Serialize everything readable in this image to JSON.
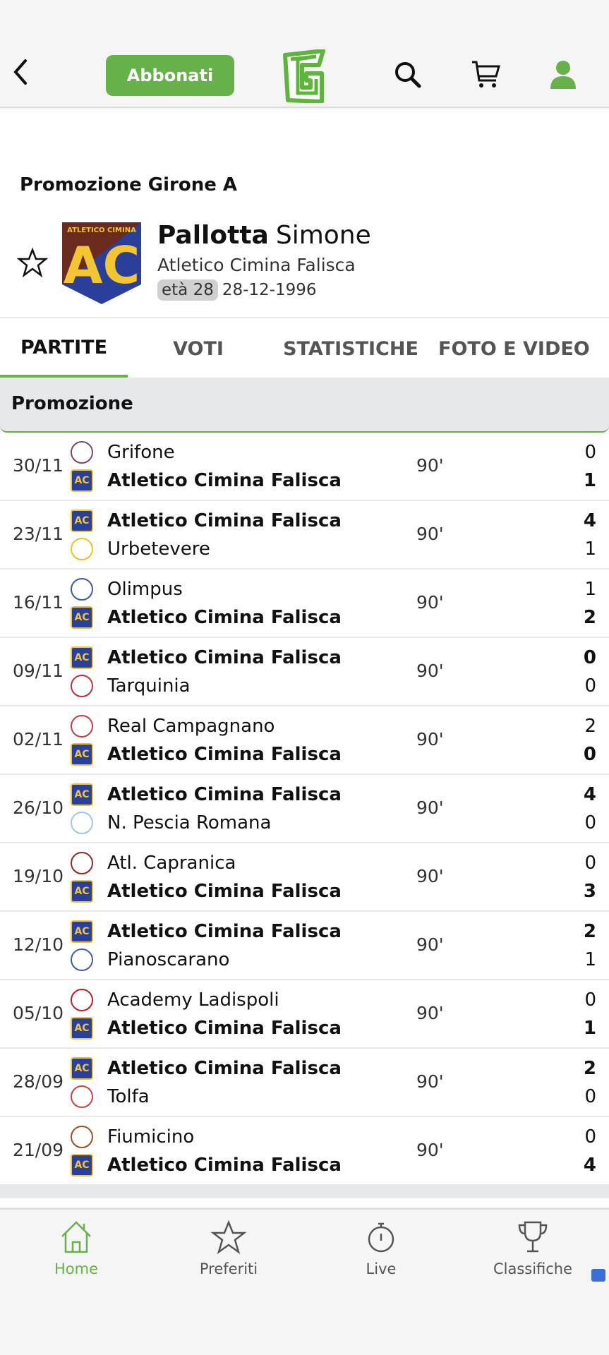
{
  "header": {
    "subscribe_label": "Abbonati",
    "accent": "#67b14b"
  },
  "player": {
    "league": "Promozione  Girone A",
    "surname": "Pallotta",
    "name": "Simone",
    "team": "Atletico Cimina Falisca",
    "age": "età 28",
    "birthdate": "28-12-1996"
  },
  "tabs": [
    {
      "label": "PARTITE",
      "active": true
    },
    {
      "label": "VOTI"
    },
    {
      "label": "STATISTICHE"
    },
    {
      "label": "FOTO E VIDEO"
    }
  ],
  "section": "Promozione",
  "matches": [
    {
      "date": "30/11",
      "home": "Grifone",
      "away": "Atletico Cimina Falisca",
      "minute": "90'",
      "home_score": "0",
      "away_score": "1"
    },
    {
      "date": "23/11",
      "home": "Atletico Cimina Falisca",
      "away": "Urbetevere",
      "minute": "90'",
      "home_score": "4",
      "away_score": "1"
    },
    {
      "date": "16/11",
      "home": "Olimpus",
      "away": "Atletico Cimina Falisca",
      "minute": "90'",
      "home_score": "1",
      "away_score": "2"
    },
    {
      "date": "09/11",
      "home": "Atletico Cimina Falisca",
      "away": "Tarquinia",
      "minute": "90'",
      "home_score": "0",
      "away_score": "0"
    },
    {
      "date": "02/11",
      "home": "Real Campagnano",
      "away": "Atletico Cimina Falisca",
      "minute": "90'",
      "home_score": "2",
      "away_score": "0"
    },
    {
      "date": "26/10",
      "home": "Atletico Cimina Falisca",
      "away": "N. Pescia Romana",
      "minute": "90'",
      "home_score": "4",
      "away_score": "0"
    },
    {
      "date": "19/10",
      "home": "Atl. Capranica",
      "away": "Atletico Cimina Falisca",
      "minute": "90'",
      "home_score": "0",
      "away_score": "3"
    },
    {
      "date": "12/10",
      "home": "Atletico Cimina Falisca",
      "away": "Pianoscarano",
      "minute": "90'",
      "home_score": "2",
      "away_score": "1"
    },
    {
      "date": "05/10",
      "home": "Academy Ladispoli",
      "away": "Atletico Cimina Falisca",
      "minute": "90'",
      "home_score": "0",
      "away_score": "1"
    },
    {
      "date": "28/09",
      "home": "Atletico Cimina Falisca",
      "away": "Tolfa",
      "minute": "90'",
      "home_score": "2",
      "away_score": "0"
    },
    {
      "date": "21/09",
      "home": "Fiumicino",
      "away": "Atletico Cimina Falisca",
      "minute": "90'",
      "home_score": "0",
      "away_score": "4"
    }
  ],
  "nav": [
    {
      "label": "Home",
      "icon": "home-icon",
      "active": true
    },
    {
      "label": "Preferiti",
      "icon": "star-icon"
    },
    {
      "label": "Live",
      "icon": "stopwatch-icon"
    },
    {
      "label": "Classifiche",
      "icon": "trophy-icon"
    }
  ]
}
